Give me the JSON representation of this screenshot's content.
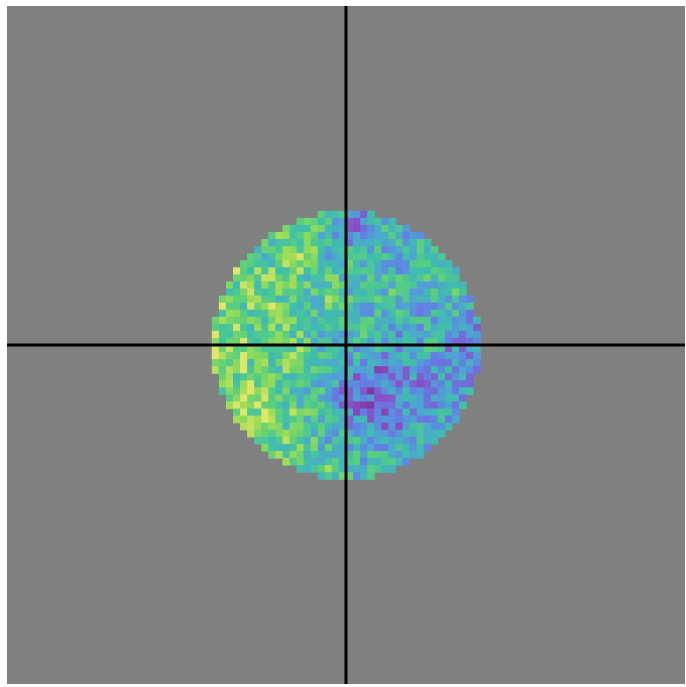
{
  "chart_data": {
    "type": "heatmap",
    "title": "",
    "xlabel": "",
    "ylabel": "",
    "grid": false,
    "legend": "none",
    "background_color": "#808080",
    "crosshair_color": "#000000",
    "colormap": "viridis",
    "shape": "circle",
    "grid_cells": 96,
    "disk_radius_cells": 19,
    "crosshair": {
      "x": 0,
      "y": 0
    },
    "xlim": [
      -48,
      48
    ],
    "ylim": [
      -48,
      48
    ]
  }
}
